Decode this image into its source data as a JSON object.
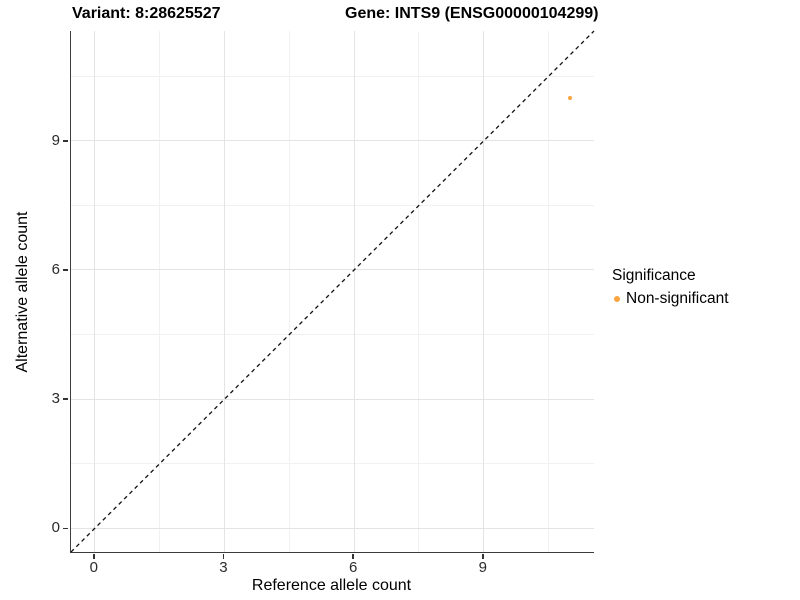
{
  "header": {
    "variant_title": "Variant: 8:28625527",
    "gene_title": "Gene: INTS9 (ENSG00000104299)"
  },
  "axes": {
    "x": {
      "label": "Reference allele count",
      "tick_labels": [
        "0",
        "3",
        "6",
        "9"
      ]
    },
    "y": {
      "label": "Alternative allele count",
      "tick_labels": [
        "0",
        "3",
        "6",
        "9"
      ]
    }
  },
  "legend": {
    "title": "Significance",
    "items": [
      {
        "label": "Non-significant",
        "color": "#FAA43F"
      }
    ]
  },
  "colors": {
    "point": "#FAA43F",
    "axis_line": "#3c3c3c",
    "grid_major": "#e4e4e4",
    "grid_minor": "#f1f1f1",
    "reference_line": "#111111",
    "background": "#ffffff"
  },
  "chart_data": {
    "type": "scatter",
    "title": "Variant: 8:28625527   Gene: INTS9 (ENSG00000104299)",
    "xlabel": "Reference allele count",
    "ylabel": "Alternative allele count",
    "xlim": [
      -0.55,
      11.55
    ],
    "ylim": [
      -0.55,
      11.55
    ],
    "x_ticks": [
      0,
      3,
      6,
      9
    ],
    "y_ticks": [
      0,
      3,
      6,
      9
    ],
    "x_minor_ticks": [
      1.5,
      4.5,
      7.5,
      10.5
    ],
    "y_minor_ticks": [
      1.5,
      4.5,
      7.5,
      10.5
    ],
    "grid": true,
    "legend_position": "right",
    "reference_line": {
      "kind": "identity",
      "style": "dashed"
    },
    "series": [
      {
        "name": "Non-significant",
        "color": "#FAA43F",
        "points": [
          {
            "x": 11,
            "y": 10
          }
        ]
      }
    ]
  }
}
